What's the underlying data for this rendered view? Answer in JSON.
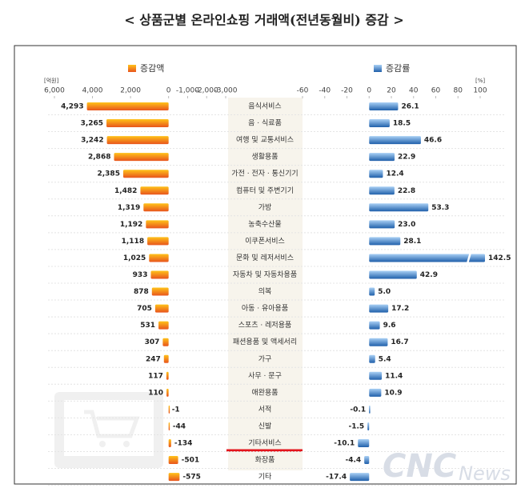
{
  "chart_data": {
    "type": "bar",
    "title": "< 상품군별 온라인쇼핑 거래액(전년동월비) 증감 >",
    "watermark": [
      "CNC",
      "News"
    ],
    "categories": [
      "음식서비스",
      "음 · 식료품",
      "여행 및 교통서비스",
      "생활용품",
      "가전 · 전자 · 통신기기",
      "컴퓨터 및 주변기기",
      "가방",
      "농축수산물",
      "이쿠폰서비스",
      "문화 및 레저서비스",
      "자동차 및 자동차용품",
      "의복",
      "아동 · 유아용품",
      "스포츠 · 레저용품",
      "패션용품 및 액세서리",
      "가구",
      "사무 · 문구",
      "애완용품",
      "서적",
      "신발",
      "기타서비스",
      "화장품",
      "기타"
    ],
    "series": [
      {
        "name": "증감액",
        "unit": "[억원]",
        "color": "#e8541c",
        "xlim": [
          6000,
          -3000
        ],
        "xticks": [
          {
            "value": 6000,
            "label": "6,000"
          },
          {
            "value": 4000,
            "label": "4,000"
          },
          {
            "value": 2000,
            "label": "2,000"
          },
          0,
          {
            "value": -1000,
            "label": "-1,000"
          },
          {
            "value": -2000,
            "label": "-2,000"
          },
          {
            "value": -3000,
            "label": "-3,000"
          }
        ],
        "values": [
          4293,
          3265,
          3242,
          2868,
          2385,
          1482,
          1319,
          1192,
          1118,
          1025,
          933,
          878,
          705,
          531,
          307,
          247,
          117,
          110,
          -1,
          -44,
          -134,
          -501,
          -575
        ],
        "value_labels": [
          "4,293",
          "3,265",
          "3,242",
          "2,868",
          "2,385",
          "1,482",
          "1,319",
          "1,192",
          "1,118",
          "1,025",
          "933",
          "878",
          "705",
          "531",
          "307",
          "247",
          "117",
          "110",
          "-1",
          "-44",
          "-134",
          "-501",
          "-575"
        ]
      },
      {
        "name": "증감률",
        "unit": "[%]",
        "color": "#1f5faa",
        "xlim": [
          -60,
          100
        ],
        "xticks": [
          -60,
          -40,
          -20,
          0,
          20,
          40,
          60,
          80,
          100
        ],
        "values": [
          26.1,
          18.5,
          46.6,
          22.9,
          12.4,
          22.8,
          53.3,
          23.0,
          28.1,
          142.5,
          42.9,
          5.0,
          17.2,
          9.6,
          16.7,
          5.4,
          11.4,
          10.9,
          -0.1,
          -1.5,
          -10.1,
          -4.4,
          -17.4
        ],
        "value_labels": [
          "26.1",
          "18.5",
          "46.6",
          "22.9",
          "12.4",
          "22.8",
          "53.3",
          "23.0",
          "28.1",
          "142.5",
          "42.9",
          "5.0",
          "17.2",
          "9.6",
          "16.7",
          "5.4",
          "11.4",
          "10.9",
          "-0.1",
          "-1.5",
          "-10.1",
          "-4.4",
          "-17.4"
        ]
      }
    ]
  }
}
